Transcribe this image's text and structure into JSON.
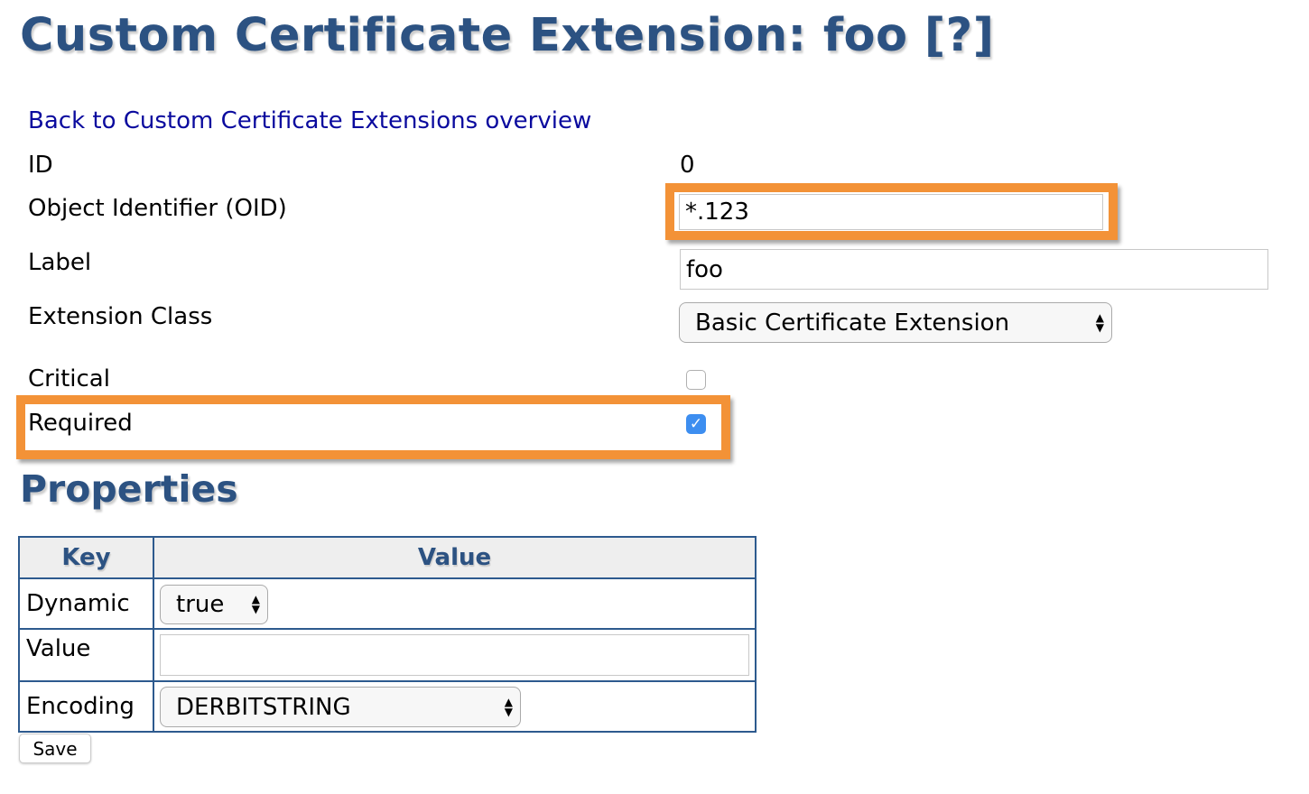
{
  "page": {
    "title": "Custom Certificate Extension: foo [?]",
    "back_link": "Back to Custom Certificate Extensions overview",
    "accent_color": "#2c5282",
    "highlight_color": "#f39237"
  },
  "form": {
    "id_label": "ID",
    "id_value": "0",
    "oid_label": "Object Identifier (OID)",
    "oid_value": "*.123",
    "label_label": "Label",
    "label_value": "foo",
    "class_label": "Extension Class",
    "class_value": "Basic Certificate Extension",
    "critical_label": "Critical",
    "critical_checked": false,
    "required_label": "Required",
    "required_checked": true
  },
  "properties": {
    "heading": "Properties",
    "headers": {
      "key": "Key",
      "value": "Value"
    },
    "rows": [
      {
        "key": "Dynamic",
        "value": "true",
        "type": "select"
      },
      {
        "key": "Value",
        "value": "",
        "type": "input"
      },
      {
        "key": "Encoding",
        "value": "DERBITSTRING",
        "type": "select"
      }
    ]
  },
  "actions": {
    "save": "Save"
  }
}
